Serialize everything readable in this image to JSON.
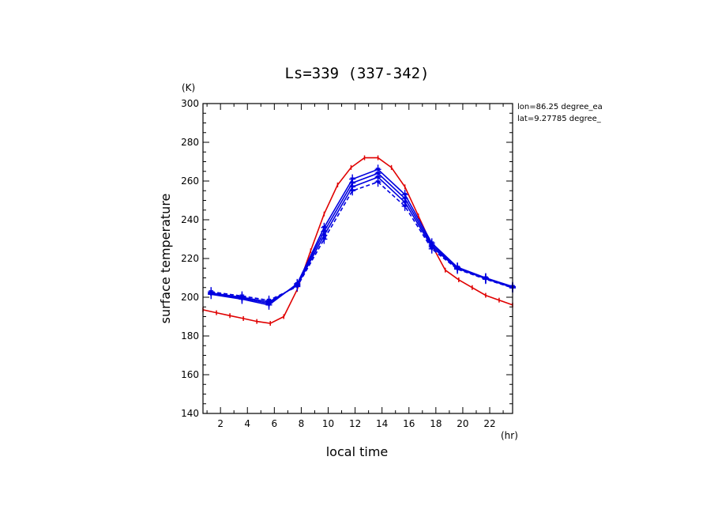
{
  "chart_data": {
    "type": "line",
    "title": "Ls=339 (337-342)",
    "xlabel": "local time",
    "ylabel": "surface temperature",
    "x_unit": "(hr)",
    "y_unit": "(K)",
    "xlim": [
      0.7,
      23.7
    ],
    "ylim": [
      140,
      300
    ],
    "x_ticks": [
      2,
      4,
      6,
      8,
      10,
      12,
      14,
      16,
      18,
      20,
      22
    ],
    "y_ticks": [
      140,
      160,
      180,
      200,
      220,
      240,
      260,
      280,
      300
    ],
    "annotations": [
      "lon=86.25 degree_ea",
      "lat=9.27785 degree_"
    ],
    "series": [
      {
        "color": "#e00000",
        "style": "solid",
        "x": [
          0.7,
          1.7,
          2.7,
          3.7,
          4.7,
          5.7,
          6.7,
          7.7,
          8.7,
          9.7,
          10.7,
          11.7,
          12.7,
          13.7,
          14.7,
          15.7,
          16.7,
          17.7,
          18.7,
          19.7,
          20.7,
          21.7,
          22.7,
          23.7
        ],
        "y": [
          193.5,
          192,
          190.5,
          189,
          187.5,
          186.5,
          190,
          204,
          224,
          243,
          258,
          267,
          272,
          272,
          267,
          257,
          242,
          227,
          214,
          209,
          205,
          201,
          198.5,
          196
        ]
      },
      {
        "color": "#0000e0",
        "style": "solid",
        "x": [
          1.3,
          3.6,
          5.6,
          7.7,
          9.7,
          11.8,
          13.7,
          15.7,
          17.7,
          19.6,
          21.7,
          23.7
        ],
        "y": [
          201.5,
          199,
          196,
          207,
          236,
          261,
          266,
          253,
          228,
          215.5,
          210,
          205.5
        ]
      },
      {
        "color": "#0000e0",
        "style": "solid",
        "x": [
          1.3,
          3.6,
          5.6,
          7.7,
          9.7,
          11.8,
          13.7,
          15.7,
          17.7,
          19.6,
          21.7,
          23.7
        ],
        "y": [
          201.8,
          199.5,
          196.8,
          206.5,
          234,
          259,
          264,
          251,
          227,
          215.2,
          209.8,
          205.2
        ]
      },
      {
        "color": "#0000e0",
        "style": "solid",
        "x": [
          1.3,
          3.6,
          5.6,
          7.7,
          9.7,
          11.8,
          13.7,
          15.7,
          17.7,
          19.6,
          21.7,
          23.7
        ],
        "y": [
          202.2,
          200,
          197.6,
          206,
          232,
          257,
          262,
          249,
          226,
          214.9,
          209.6,
          205
        ]
      },
      {
        "color": "#0000e0",
        "style": "dashed",
        "x": [
          1.3,
          3.6,
          5.6,
          7.7,
          9.7,
          11.8,
          13.7,
          15.7,
          17.7,
          19.6,
          21.7,
          23.7
        ],
        "y": [
          202.8,
          200.6,
          198.4,
          205.5,
          230,
          255,
          259.5,
          247,
          225,
          214.5,
          209.3,
          204.8
        ]
      }
    ]
  }
}
